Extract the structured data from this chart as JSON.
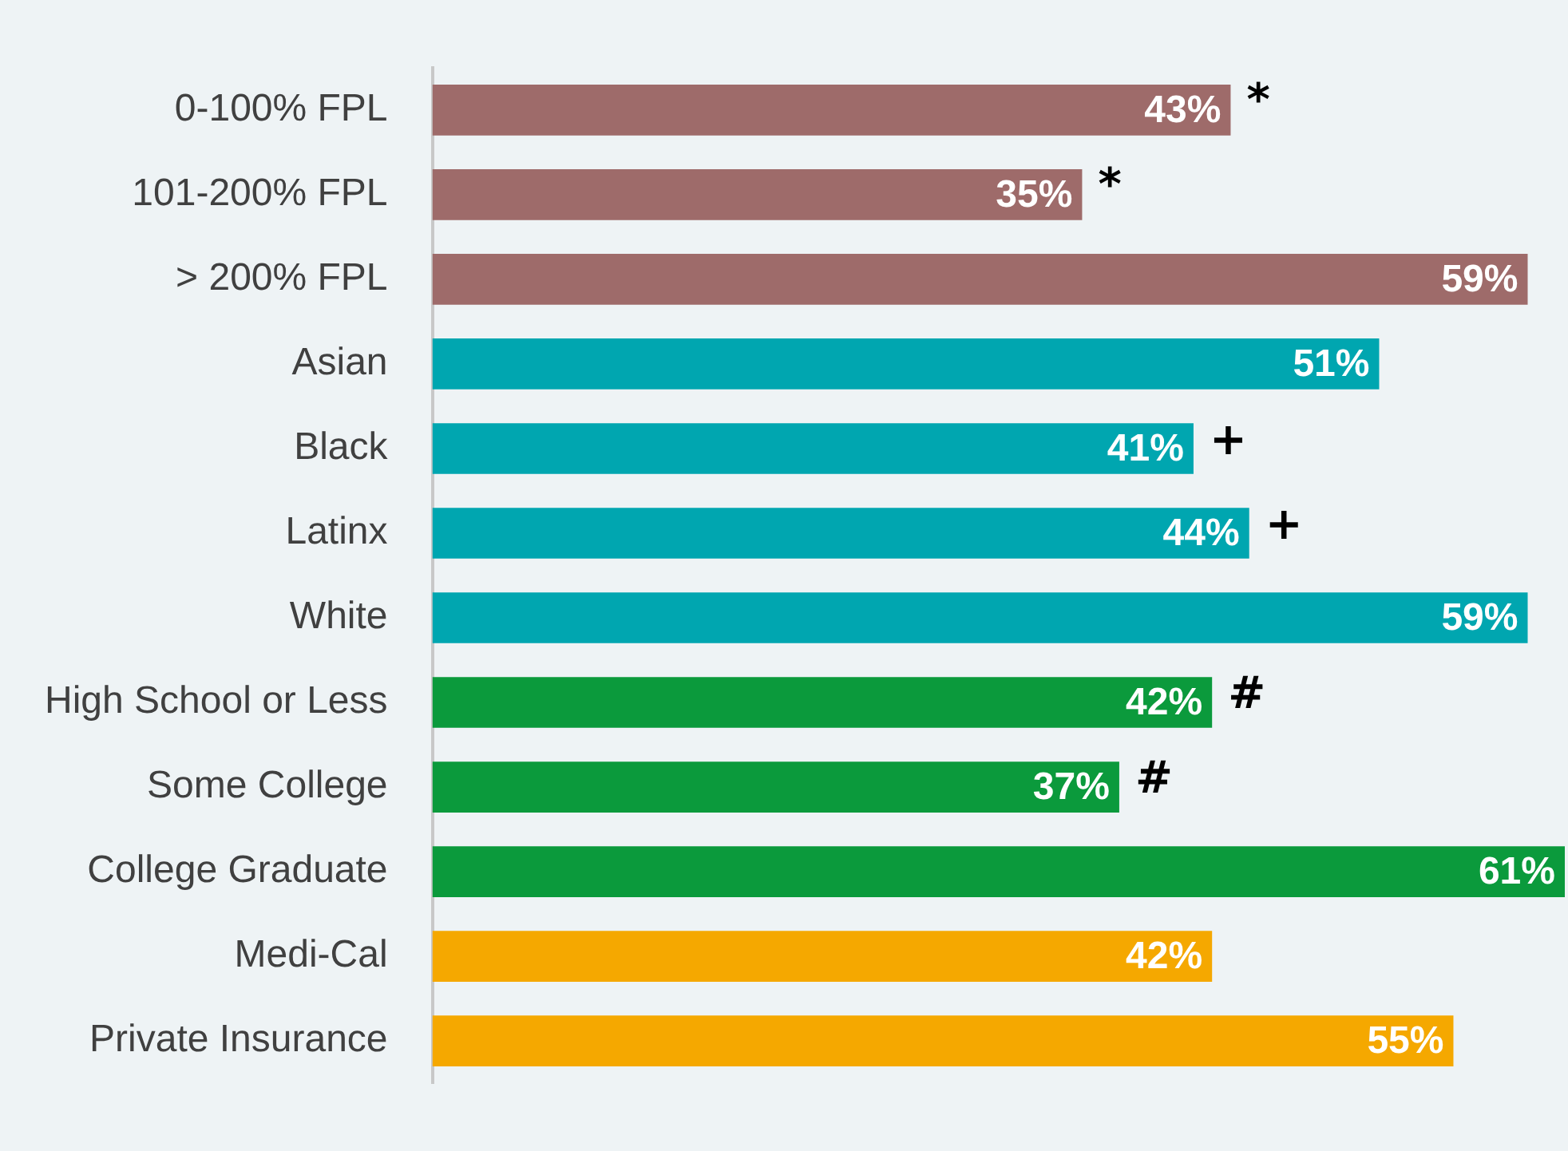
{
  "chart_data": {
    "type": "bar",
    "orientation": "horizontal",
    "categories": [
      "0-100% FPL",
      "101-200% FPL",
      "> 200% FPL",
      "Asian",
      "Black",
      "Latinx",
      "White",
      "High School or Less",
      "Some College",
      "College Graduate",
      "Medi-Cal",
      "Private Insurance"
    ],
    "values": [
      43,
      35,
      59,
      51,
      41,
      44,
      59,
      42,
      37,
      61,
      42,
      55
    ],
    "colors": [
      "#9e6b6a",
      "#9e6b6a",
      "#9e6b6a",
      "#00a6b0",
      "#00a6b0",
      "#00a6b0",
      "#00a6b0",
      "#0b9a3c",
      "#0b9a3c",
      "#0b9a3c",
      "#f5a800",
      "#f5a800"
    ],
    "value_labels": [
      "43%",
      "35%",
      "59%",
      "51%",
      "41%",
      "44%",
      "59%",
      "42%",
      "37%",
      "61%",
      "42%",
      "55%"
    ],
    "annotations": [
      {
        "text": "*",
        "x": 43,
        "y": "0-100% FPL"
      },
      {
        "text": "*",
        "x": 35,
        "y": "101-200% FPL"
      },
      {
        "text": "+",
        "x": 41,
        "y": "Black"
      },
      {
        "text": "+",
        "x": 44,
        "y": "Latinx"
      },
      {
        "text": "#",
        "x": 42,
        "y": "High School or Less"
      },
      {
        "text": "#",
        "x": 37,
        "y": "Some College"
      }
    ],
    "tick_labels": "y",
    "grid": false,
    "legend": false
  }
}
